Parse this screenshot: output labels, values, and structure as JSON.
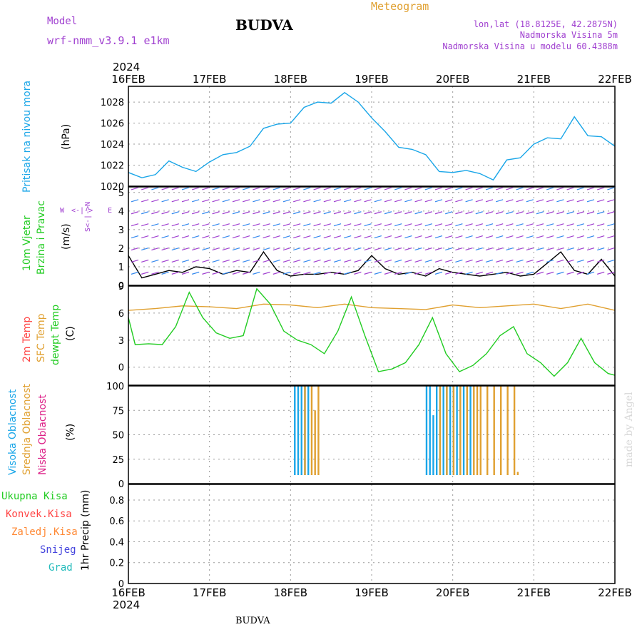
{
  "header": {
    "title": "BUDVA",
    "model_label": "Model",
    "model_name": "wrf-nmm_v3.9.1 e1km",
    "meteogram_label": "Meteogram",
    "coords": "lon,lat (18.8125E, 42.2875N)",
    "altitude": "Nadmorska Visina 5m",
    "model_altitude": "Nadmorska Visina u modelu 60.4388m",
    "year_top": "2024",
    "year_bottom": "2024",
    "footer_title": "BUDVA",
    "credit": "made by Angel"
  },
  "colors": {
    "pressure": "#1aa6e8",
    "wind_green": "#22cc22",
    "temp2m": "#ff4444",
    "sfc": "#e0a030",
    "dewpt": "#22cc22",
    "high_cloud": "#1aa6e8",
    "mid_cloud": "#e0a030",
    "low_cloud": "#dd2288",
    "purple": "#a040d0",
    "total_precip": "#22cc22",
    "conv_precip": "#ff4444",
    "frz_precip": "#ff8833",
    "snow": "#4444dd",
    "hail": "#22bbbb"
  },
  "dates": [
    "16FEB",
    "17FEB",
    "18FEB",
    "19FEB",
    "20FEB",
    "21FEB",
    "22FEB"
  ],
  "panels": {
    "pressure": {
      "label": "Pritisak na nivou mora",
      "unit": "(hPa)"
    },
    "wind": {
      "label1": "10m Vjetar",
      "label2": "Brzina i Pravac",
      "unit": "(m/s)",
      "compass_ns": "S<-|->N",
      "compass_w": "W",
      "compass_e": "E"
    },
    "temp": {
      "label_2m": "2m Temp",
      "label_sfc": "SFC Temp",
      "label_dew": "dewpt Temp",
      "unit": "(C)"
    },
    "cloud": {
      "label_high": "Visoka Oblacnost",
      "label_mid": "Srednja Oblacnost",
      "label_low": "Niska Oblacnost",
      "unit": "(%)"
    },
    "precip": {
      "label_total": "Ukupna Kisa",
      "label_conv": "Konvek.Kisa",
      "label_frz": "Zaledj.Kisa",
      "label_snow": "Snijeg",
      "label_hail": "Grad",
      "unit": "1hr Precip (mm)"
    }
  },
  "chart_data": [
    {
      "type": "line",
      "title": "",
      "ylabel": "(hPa)",
      "ylim": [
        1020,
        1029.5
      ],
      "yticks": [
        1020,
        1022,
        1024,
        1026,
        1028
      ],
      "xlim": [
        0,
        144
      ],
      "series": [
        {
          "name": "Pritisak na nivou mora",
          "x": [
            0,
            4,
            8,
            12,
            16,
            20,
            24,
            28,
            32,
            36,
            40,
            44,
            48,
            52,
            56,
            60,
            64,
            68,
            72,
            76,
            80,
            84,
            88,
            92,
            96,
            100,
            104,
            108,
            112,
            116,
            120,
            124,
            128,
            132,
            136,
            140,
            144
          ],
          "values": [
            1021.3,
            1020.8,
            1021.1,
            1022.4,
            1021.8,
            1021.4,
            1022.3,
            1023.0,
            1023.2,
            1023.8,
            1025.5,
            1025.9,
            1026.0,
            1027.5,
            1028.0,
            1027.9,
            1028.9,
            1028.0,
            1026.5,
            1025.2,
            1023.7,
            1023.5,
            1023.0,
            1021.4,
            1021.3,
            1021.5,
            1021.2,
            1020.6,
            1022.5,
            1022.7,
            1024.0,
            1024.6,
            1024.5,
            1026.6,
            1024.8,
            1024.7,
            1023.8
          ]
        }
      ]
    },
    {
      "type": "line",
      "title": "",
      "ylabel": "(m/s)",
      "ylim": [
        0,
        5.3
      ],
      "yticks": [
        0,
        1,
        2,
        3,
        4,
        5
      ],
      "xlim": [
        0,
        144
      ],
      "series": [
        {
          "name": "",
          "x": [
            0,
            4,
            8,
            12,
            16,
            20,
            24,
            28,
            32,
            36,
            40,
            44,
            48,
            52,
            56,
            60,
            64,
            68,
            72,
            76,
            80,
            84,
            88,
            92,
            96,
            100,
            104,
            108,
            112,
            116,
            120,
            124,
            128,
            132,
            136,
            140,
            144
          ],
          "values": [
            1.6,
            0.4,
            0.6,
            0.8,
            0.7,
            1.0,
            0.9,
            0.6,
            0.8,
            0.7,
            1.8,
            0.8,
            0.5,
            0.6,
            0.6,
            0.7,
            0.6,
            0.8,
            1.6,
            0.9,
            0.6,
            0.7,
            0.5,
            0.9,
            0.7,
            0.6,
            0.5,
            0.6,
            0.7,
            0.5,
            0.6,
            1.2,
            1.8,
            0.8,
            0.6,
            1.4,
            0.5
          ]
        }
      ]
    },
    {
      "type": "line",
      "title": "",
      "ylabel": "(C)",
      "ylim": [
        -2,
        9
      ],
      "yticks": [
        0,
        3,
        6,
        9
      ],
      "xlim": [
        0,
        144
      ],
      "series": [
        {
          "name": "SFC Temp",
          "x": [
            0,
            8,
            16,
            24,
            32,
            40,
            48,
            56,
            64,
            72,
            80,
            88,
            96,
            104,
            112,
            120,
            128,
            136,
            144
          ],
          "values": [
            6.3,
            6.5,
            6.8,
            6.7,
            6.5,
            7.0,
            6.9,
            6.6,
            7.0,
            6.6,
            6.5,
            6.4,
            6.9,
            6.6,
            6.8,
            7.0,
            6.5,
            7.0,
            6.3
          ]
        },
        {
          "name": "dewpt Temp",
          "x": [
            0,
            2,
            6,
            10,
            14,
            18,
            22,
            26,
            30,
            34,
            38,
            42,
            46,
            50,
            54,
            58,
            62,
            66,
            70,
            74,
            78,
            82,
            86,
            90,
            94,
            98,
            102,
            106,
            110,
            114,
            118,
            122,
            126,
            130,
            134,
            138,
            142,
            144
          ],
          "values": [
            5.5,
            2.5,
            2.6,
            2.5,
            4.5,
            8.3,
            5.5,
            3.8,
            3.2,
            3.5,
            8.7,
            7.0,
            4.0,
            3.0,
            2.5,
            1.5,
            4.0,
            7.8,
            3.5,
            -0.5,
            -0.2,
            0.5,
            2.5,
            5.5,
            1.5,
            -0.5,
            0.2,
            1.5,
            3.5,
            4.5,
            1.5,
            0.5,
            -1.0,
            0.5,
            3.2,
            0.5,
            -0.7,
            -0.9
          ]
        }
      ]
    },
    {
      "type": "bar",
      "title": "",
      "ylabel": "(%)",
      "ylim": [
        0,
        100
      ],
      "yticks": [
        0,
        25,
        50,
        75,
        100
      ],
      "xlim": [
        0,
        144
      ],
      "series": [
        {
          "name": "Visoka Oblacnost",
          "x": [
            49,
            50,
            51,
            52,
            53,
            88,
            89,
            90,
            91,
            92,
            93,
            94,
            95,
            96,
            97,
            98,
            99,
            100,
            101
          ],
          "values": [
            100,
            100,
            100,
            100,
            100,
            100,
            100,
            70,
            100,
            100,
            100,
            100,
            100,
            100,
            100,
            100,
            100,
            100,
            100
          ]
        },
        {
          "name": "Srednja Oblacnost",
          "x": [
            52,
            54,
            55,
            56,
            92,
            94,
            96,
            98,
            100,
            102,
            103,
            104,
            106,
            108,
            110,
            112,
            114,
            115
          ],
          "values": [
            100,
            100,
            75,
            100,
            100,
            100,
            100,
            100,
            100,
            100,
            100,
            100,
            100,
            100,
            100,
            100,
            100,
            12
          ]
        }
      ]
    },
    {
      "type": "line",
      "title": "",
      "ylabel": "1hr Precip (mm)",
      "ylim": [
        0,
        0.95
      ],
      "yticks": [
        0,
        0.2,
        0.4,
        0.6,
        0.8
      ],
      "xlim": [
        0,
        144
      ],
      "series": [
        {
          "name": "Ukupna Kisa",
          "x": [
            0,
            144
          ],
          "values": [
            0,
            0
          ]
        }
      ]
    }
  ]
}
